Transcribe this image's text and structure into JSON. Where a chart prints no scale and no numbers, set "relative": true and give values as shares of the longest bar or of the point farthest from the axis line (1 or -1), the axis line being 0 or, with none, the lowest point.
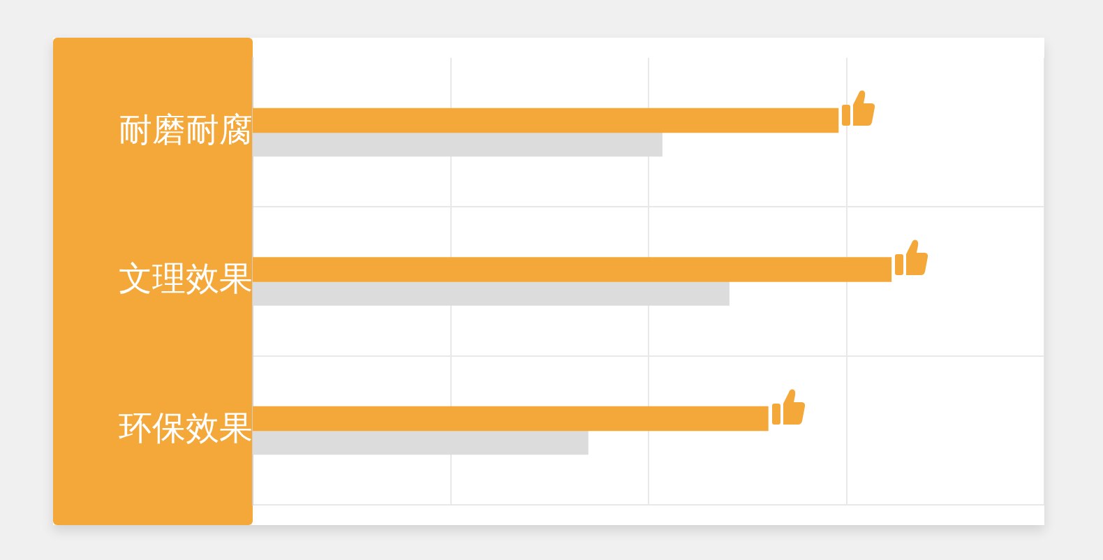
{
  "chart_data": {
    "type": "bar",
    "orientation": "horizontal",
    "relative": true,
    "grid": true,
    "categories": [
      "耐磨耐腐",
      "文理效果",
      "环保效果"
    ],
    "series": [
      {
        "color": "#f4a83a",
        "values": [
          0.917,
          1,
          0.807
        ]
      },
      {
        "color": "#dcdcdc",
        "values": [
          0.641,
          0.746,
          0.525
        ]
      }
    ]
  }
}
